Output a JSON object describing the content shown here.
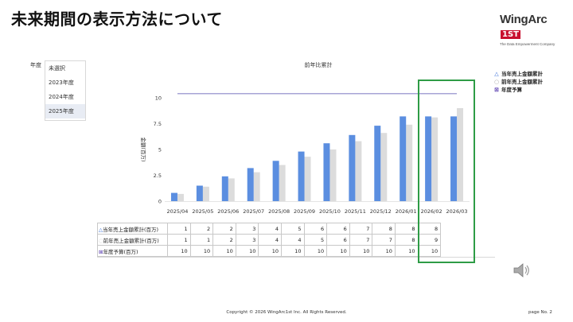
{
  "slide_title": "未来期間の表示方法について",
  "logo": {
    "main": "WingArc",
    "box": "1ST",
    "tagline": "The Data Empowerment Company"
  },
  "filter": {
    "label": "年度",
    "options": [
      "未選択",
      "2023年度",
      "2024年度",
      "2025年度"
    ],
    "selected": "2025年度"
  },
  "legend": [
    {
      "icon": "triangle-icon",
      "label": "当年売上金額累計",
      "color": "#3a6fd8"
    },
    {
      "icon": "circle-icon",
      "label": "前年売上金額累計",
      "color": "#bbbbbb"
    },
    {
      "icon": "cross-box-icon",
      "label": "年度予算",
      "color": "#5a3fb0"
    }
  ],
  "chart_data": {
    "type": "bar",
    "title": "前年比累計",
    "ylabel": "金額(百万)",
    "ylim": [
      0,
      10
    ],
    "yticks": [
      "0",
      "2.5",
      "5",
      "7.5",
      "10"
    ],
    "categories": [
      "2025/04",
      "2025/05",
      "2025/06",
      "2025/07",
      "2025/08",
      "2025/09",
      "2025/10",
      "2025/11",
      "2025/12",
      "2026/01",
      "2026/02",
      "2026/03"
    ],
    "series": [
      {
        "name": "当年売上金額累計",
        "type": "bar",
        "color": "#5b8ee0",
        "values": [
          0.8,
          1.5,
          2.4,
          3.2,
          3.9,
          4.8,
          5.6,
          6.4,
          7.3,
          8.2,
          8.2,
          8.2
        ]
      },
      {
        "name": "前年売上金額累計",
        "type": "bar",
        "color": "#dcdcdc",
        "values": [
          0.7,
          1.4,
          2.2,
          2.8,
          3.5,
          4.3,
          5.0,
          5.8,
          6.6,
          7.4,
          8.1,
          9.0
        ]
      },
      {
        "name": "年度予算",
        "type": "line",
        "color": "#8a86c8",
        "values": [
          10.4,
          10.4,
          10.4,
          10.4,
          10.4,
          10.4,
          10.4,
          10.4,
          10.4,
          10.4,
          10.4,
          10.4
        ]
      }
    ],
    "grid": false,
    "legend_position": "right"
  },
  "table": {
    "rows": [
      {
        "icon": "△",
        "label": "当年売上金額累計(百万)",
        "values": [
          "1",
          "2",
          "2",
          "3",
          "4",
          "5",
          "6",
          "6",
          "7",
          "8",
          "8",
          "8"
        ]
      },
      {
        "icon": "◌",
        "label": "前年売上金額累計(百万)",
        "values": [
          "1",
          "1",
          "2",
          "3",
          "4",
          "4",
          "5",
          "6",
          "7",
          "7",
          "8",
          "9"
        ]
      },
      {
        "icon": "⊠",
        "label": "年度予算(百万)",
        "values": [
          "10",
          "10",
          "10",
          "10",
          "10",
          "10",
          "10",
          "10",
          "10",
          "10",
          "10",
          "10"
        ]
      }
    ]
  },
  "footer": {
    "copyright": "Copyright © 2026 WingArc1st Inc.  All Rights Reserved.",
    "page": "page No.    2"
  }
}
